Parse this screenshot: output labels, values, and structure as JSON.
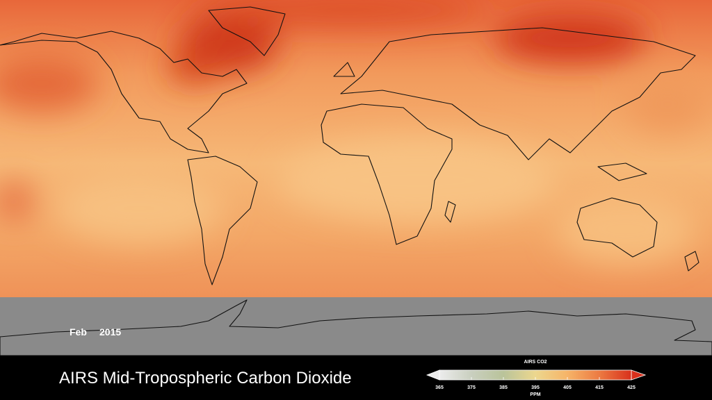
{
  "date": {
    "month": "Feb",
    "year": "2015"
  },
  "title": "AIRS Mid-Tropospheric Carbon Dioxide",
  "colorbar": {
    "title": "AIRS CO2",
    "unit": "PPM",
    "lim": [
      365,
      425
    ],
    "ticks": [
      365,
      375,
      385,
      395,
      405,
      415,
      425
    ],
    "colors": [
      "#ececec",
      "#c9cfbf",
      "#b9c39a",
      "#ecd78e",
      "#f6b468",
      "#ec7a42",
      "#d8301c"
    ]
  }
}
